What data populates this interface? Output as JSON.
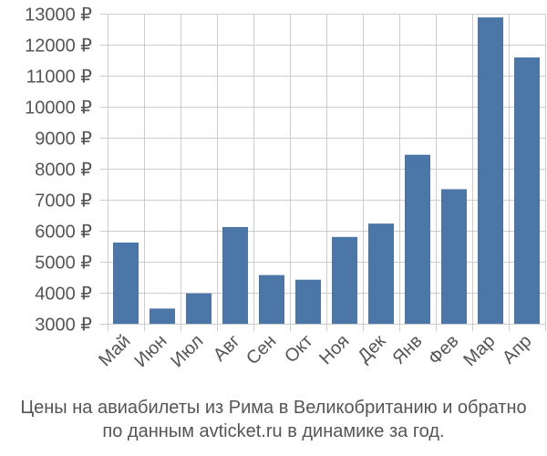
{
  "chart_data": {
    "type": "bar",
    "title": "",
    "xlabel": "",
    "ylabel": "",
    "categories": [
      "Май",
      "Июн",
      "Июл",
      "Авг",
      "Сен",
      "Окт",
      "Ноя",
      "Дек",
      "Янв",
      "Фев",
      "Мар",
      "Апр"
    ],
    "values": [
      5620,
      3490,
      3980,
      6120,
      4570,
      4420,
      5800,
      6230,
      8450,
      7340,
      12880,
      11590
    ],
    "ylim": [
      3000,
      13000
    ],
    "yticks": [
      3000,
      4000,
      5000,
      6000,
      7000,
      8000,
      9000,
      10000,
      11000,
      12000,
      13000
    ],
    "ytick_labels": [
      "3000 ₽",
      "4000 ₽",
      "5000 ₽",
      "6000 ₽",
      "7000 ₽",
      "8000 ₽",
      "9000 ₽",
      "10000 ₽",
      "11000 ₽",
      "12000 ₽",
      "13000 ₽"
    ],
    "bar_color": "#4a76a8",
    "grid_color": "#cccccc",
    "grid": true
  },
  "caption": {
    "line1": "Цены на авиабилеты из Рима в Великобританию и обратно",
    "line2": "по данным avticket.ru в динамике за год."
  }
}
